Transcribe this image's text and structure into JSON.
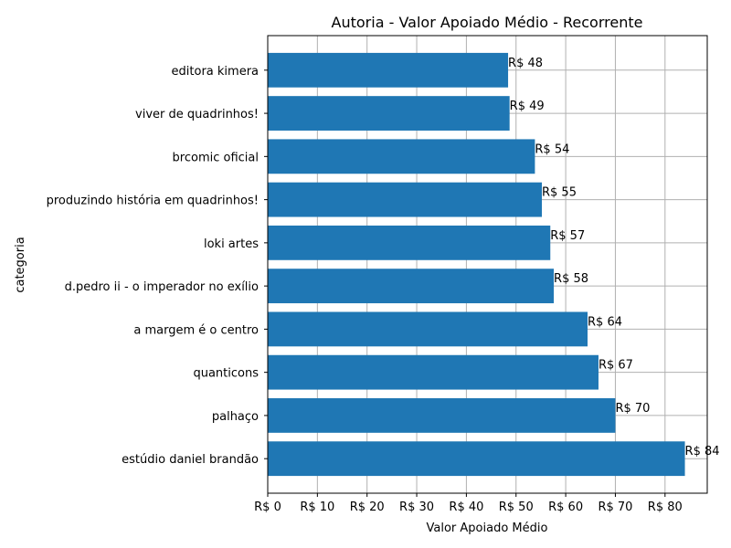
{
  "chart_data": {
    "type": "bar",
    "orientation": "horizontal",
    "title": "Autoria - Valor Apoiado Médio - Recorrente",
    "xlabel": "Valor Apoiado Médio",
    "ylabel": "categoria",
    "xlim": [
      0,
      88.5
    ],
    "x_ticks": [
      0,
      10,
      20,
      30,
      40,
      50,
      60,
      70,
      80
    ],
    "tick_prefix": "R$ ",
    "grid": true,
    "bar_color": "#1f77b4",
    "categories": [
      "estúdio daniel brandão",
      "palhaço",
      "quanticons",
      "a margem é o centro",
      "d.pedro ii - o imperador no exílio",
      "loki artes",
      "produzindo história em quadrinhos!",
      "brcomic oficial",
      "viver de quadrinhos!",
      "editora kimera"
    ],
    "values": [
      84,
      70,
      66.6,
      64.4,
      57.6,
      56.9,
      55.2,
      53.8,
      48.7,
      48.4
    ],
    "data_labels": [
      "R$ 84",
      "R$ 70",
      "R$ 67",
      "R$ 64",
      "R$ 58",
      "R$ 57",
      "R$ 55",
      "R$ 54",
      "R$ 49",
      "R$ 48"
    ]
  }
}
